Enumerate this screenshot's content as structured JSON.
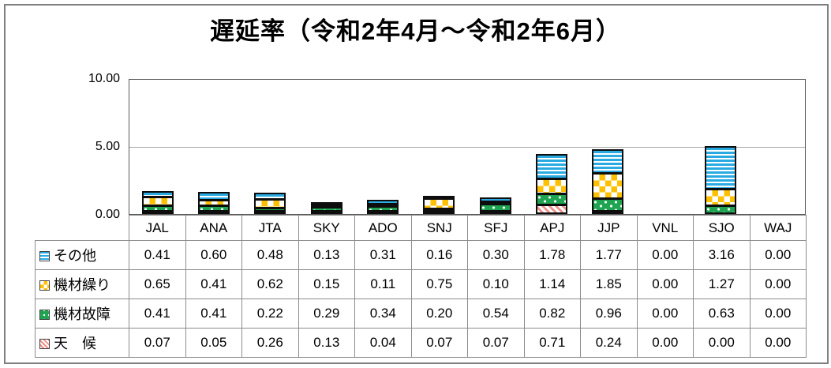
{
  "title": "遅延率（令和2年4月～令和2年6月）",
  "number_format": "0.00",
  "colors": {
    "others_blue": "#29ABE2",
    "scheduling_yellow": "#FFC000",
    "malfunction_green": "#1FA551",
    "weather_pink": "#F0908A",
    "frame_gray": "#808080",
    "axis_gray": "#595959",
    "table_line_gray": "#8c8c8c",
    "gridline_gray": "#a6a6a6"
  },
  "chart_data": {
    "type": "bar",
    "stacked": true,
    "title": "遅延率（令和2年4月～令和2年6月）",
    "xlabel": "",
    "ylabel": "",
    "ylim": [
      0,
      10
    ],
    "yticks": [
      {
        "label": "10.00",
        "value": 10
      },
      {
        "label": "5.00",
        "value": 5
      },
      {
        "label": "0.00",
        "value": 0
      }
    ],
    "grid": "horizontal gridline at 5.00 only",
    "legend_position": "table header column at left of data table below chart",
    "categories": [
      "JAL",
      "ANA",
      "JTA",
      "SKY",
      "ADO",
      "SNJ",
      "SFJ",
      "APJ",
      "JJP",
      "VNL",
      "SJO",
      "WAJ"
    ],
    "series": [
      {
        "name": "その他",
        "pattern": "hstripes",
        "icon": "blue-horizontal-stripes-swatch-icon",
        "values": [
          0.41,
          0.6,
          0.48,
          0.13,
          0.31,
          0.16,
          0.3,
          1.78,
          1.77,
          0.0,
          3.16,
          0.0
        ]
      },
      {
        "name": "機材繰り",
        "pattern": "checker",
        "icon": "yellow-checker-swatch-icon",
        "values": [
          0.65,
          0.41,
          0.62,
          0.15,
          0.11,
          0.75,
          0.1,
          1.14,
          1.85,
          0.0,
          1.27,
          0.0
        ]
      },
      {
        "name": "機材故障",
        "pattern": "dots",
        "icon": "green-dots-swatch-icon",
        "values": [
          0.41,
          0.41,
          0.22,
          0.29,
          0.34,
          0.2,
          0.54,
          0.82,
          0.96,
          0.0,
          0.63,
          0.0
        ]
      },
      {
        "name": "天　候",
        "pattern": "diag",
        "icon": "pink-diagonal-stripes-swatch-icon",
        "values": [
          0.07,
          0.05,
          0.26,
          0.13,
          0.04,
          0.07,
          0.07,
          0.71,
          0.24,
          0.0,
          0.0,
          0.0
        ]
      }
    ]
  }
}
